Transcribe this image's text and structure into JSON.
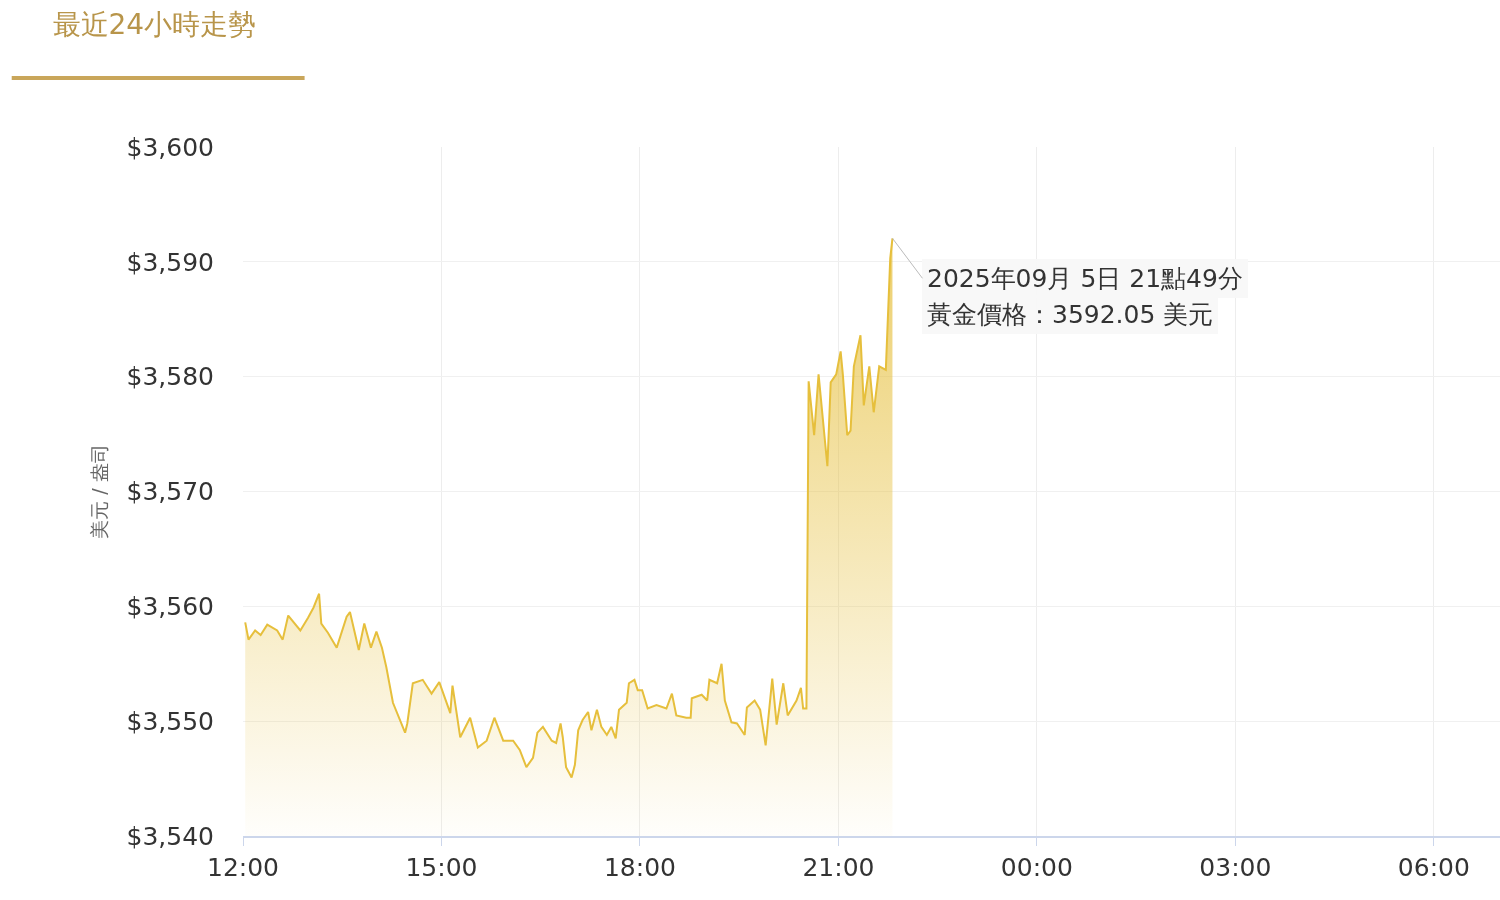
{
  "chart_data": {
    "type": "area",
    "title": "最近24小時走勢",
    "ylabel": "美元 / 盎司",
    "x": [
      "2025-09-05T12:02",
      "2025-09-05T12:05",
      "2025-09-05T12:11",
      "2025-09-05T12:16",
      "2025-09-05T12:22",
      "2025-09-05T12:31",
      "2025-09-05T12:36",
      "2025-09-05T12:41",
      "2025-09-05T12:52",
      "2025-09-05T12:59",
      "2025-09-05T13:04",
      "2025-09-05T13:09",
      "2025-09-05T13:11",
      "2025-09-05T13:17",
      "2025-09-05T13:25",
      "2025-09-05T13:34",
      "2025-09-05T13:37",
      "2025-09-05T13:45",
      "2025-09-05T13:50",
      "2025-09-05T13:56",
      "2025-09-05T14:01",
      "2025-09-05T14:06",
      "2025-09-05T14:10",
      "2025-09-05T14:16",
      "2025-09-05T14:27",
      "2025-09-05T14:29",
      "2025-09-05T14:34",
      "2025-09-05T14:43",
      "2025-09-05T14:51",
      "2025-09-05T14:58",
      "2025-09-05T15:08",
      "2025-09-05T15:10",
      "2025-09-05T15:17",
      "2025-09-05T15:26",
      "2025-09-05T15:33",
      "2025-09-05T15:41",
      "2025-09-05T15:48",
      "2025-09-05T15:56",
      "2025-09-05T16:05",
      "2025-09-05T16:11",
      "2025-09-05T16:17",
      "2025-09-05T16:23",
      "2025-09-05T16:27",
      "2025-09-05T16:32",
      "2025-09-05T16:40",
      "2025-09-05T16:44",
      "2025-09-05T16:48",
      "2025-09-05T16:50",
      "2025-09-05T16:53",
      "2025-09-05T16:58",
      "2025-09-05T17:01",
      "2025-09-05T17:04",
      "2025-09-05T17:08",
      "2025-09-05T17:13",
      "2025-09-05T17:16",
      "2025-09-05T17:21",
      "2025-09-05T17:25",
      "2025-09-05T17:30",
      "2025-09-05T17:34",
      "2025-09-05T17:38",
      "2025-09-05T17:41",
      "2025-09-05T17:48",
      "2025-09-05T17:50",
      "2025-09-05T17:55",
      "2025-09-05T17:58",
      "2025-09-05T18:02",
      "2025-09-05T18:07",
      "2025-09-05T18:15",
      "2025-09-05T18:24",
      "2025-09-05T18:29",
      "2025-09-05T18:33",
      "2025-09-05T18:42",
      "2025-09-05T18:46",
      "2025-09-05T18:47",
      "2025-09-05T18:56",
      "2025-09-05T19:01",
      "2025-09-05T19:03",
      "2025-09-05T19:10",
      "2025-09-05T19:14",
      "2025-09-05T19:17",
      "2025-09-05T19:23",
      "2025-09-05T19:28",
      "2025-09-05T19:35",
      "2025-09-05T19:37",
      "2025-09-05T19:44",
      "2025-09-05T19:49",
      "2025-09-05T19:54",
      "2025-09-05T20:00",
      "2025-09-05T20:04",
      "2025-09-05T20:10",
      "2025-09-05T20:14",
      "2025-09-05T20:22",
      "2025-09-05T20:26",
      "2025-09-05T20:28",
      "2025-09-05T20:31",
      "2025-09-05T20:33",
      "2025-09-05T20:38",
      "2025-09-05T20:42",
      "2025-09-05T20:50",
      "2025-09-05T20:53",
      "2025-09-05T20:58",
      "2025-09-05T21:02",
      "2025-09-05T21:04",
      "2025-09-05T21:08",
      "2025-09-05T21:11",
      "2025-09-05T21:14",
      "2025-09-05T21:20",
      "2025-09-05T21:23",
      "2025-09-05T21:28",
      "2025-09-05T21:32",
      "2025-09-05T21:37",
      "2025-09-05T21:43",
      "2025-09-05T21:47",
      "2025-09-05T21:49"
    ],
    "series": [
      {
        "color": "#e6bf3c",
        "values": [
          3558.6,
          3557.1,
          3557.9,
          3557.5,
          3558.4,
          3557.9,
          3557.1,
          3559.2,
          3557.9,
          3559.0,
          3559.9,
          3561.1,
          3558.5,
          3557.7,
          3556.4,
          3559.1,
          3559.5,
          3556.2,
          3558.5,
          3556.4,
          3557.8,
          3556.4,
          3554.7,
          3551.6,
          3549.0,
          3549.8,
          3553.3,
          3553.6,
          3552.4,
          3553.4,
          3550.7,
          3553.1,
          3548.6,
          3550.3,
          3547.7,
          3548.3,
          3550.3,
          3548.3,
          3548.3,
          3547.5,
          3546.0,
          3546.8,
          3549.0,
          3549.5,
          3548.3,
          3548.1,
          3549.8,
          3548.6,
          3546.0,
          3545.1,
          3546.2,
          3549.2,
          3550.1,
          3550.8,
          3549.2,
          3551.0,
          3549.5,
          3548.8,
          3549.5,
          3548.5,
          3551.0,
          3551.6,
          3553.3,
          3553.6,
          3552.7,
          3552.7,
          3551.1,
          3551.4,
          3551.1,
          3552.4,
          3550.5,
          3550.3,
          3550.3,
          3552.0,
          3552.3,
          3551.8,
          3553.6,
          3553.3,
          3555.0,
          3551.8,
          3549.9,
          3549.8,
          3548.8,
          3551.2,
          3551.8,
          3551.0,
          3547.9,
          3553.7,
          3549.7,
          3553.3,
          3550.5,
          3551.8,
          3552.9,
          3551.1,
          3551.1,
          3579.6,
          3574.9,
          3580.2,
          3572.2,
          3579.5,
          3580.2,
          3582.2,
          3580.2,
          3574.9,
          3575.3,
          3580.9,
          3583.6,
          3577.5,
          3580.9,
          3576.9,
          3580.9,
          3580.6,
          3590.3,
          3592.05
        ]
      }
    ],
    "xlim": [
      "2025-09-05T12:00",
      "2025-09-06T07:00"
    ],
    "xticks": [
      {
        "value": "2025-09-05T12:00",
        "label": "12:00"
      },
      {
        "value": "2025-09-05T15:00",
        "label": "15:00"
      },
      {
        "value": "2025-09-05T18:00",
        "label": "18:00"
      },
      {
        "value": "2025-09-05T21:00",
        "label": "21:00"
      },
      {
        "value": "2025-09-06T00:00",
        "label": "00:00"
      },
      {
        "value": "2025-09-06T03:00",
        "label": "03:00"
      },
      {
        "value": "2025-09-06T06:00",
        "label": "06:00"
      }
    ],
    "ylim": [
      3540,
      3600
    ],
    "yticks": [
      {
        "value": 3540,
        "label": "$3,540"
      },
      {
        "value": 3550,
        "label": "$3,550"
      },
      {
        "value": 3560,
        "label": "$3,560"
      },
      {
        "value": 3570,
        "label": "$3,570"
      },
      {
        "value": 3580,
        "label": "$3,580"
      },
      {
        "value": 3590,
        "label": "$3,590"
      },
      {
        "value": 3600,
        "label": "$3,600"
      }
    ],
    "grid": true,
    "marker": "none",
    "line_style": "solid",
    "annotations": [
      {
        "text": "2025年09月 5日 21點49分",
        "x": "2025-09-05T21:49",
        "y": 3592.05
      },
      {
        "text": "黃金價格：3592.05 美元",
        "x": "2025-09-05T21:49",
        "y": 3592.05
      }
    ]
  }
}
